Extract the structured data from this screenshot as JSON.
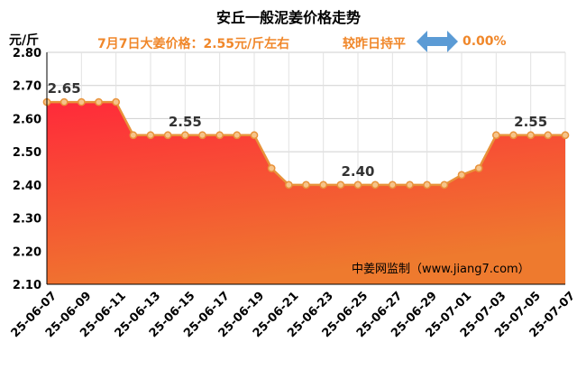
{
  "title": "安丘一般泥姜价格走势",
  "unit": "元/斤",
  "subtitle": "7月7日大姜价格：2.55元/斤左右",
  "compare_text": "较昨日持平",
  "change_pct": "0.00%",
  "watermark": "中姜网监制（www.jiang7.com）",
  "colors": {
    "line": "#e8923a",
    "fill_top": "#ff2a3a",
    "fill_bottom": "#ee7a2e",
    "subtitle": "#f0872a",
    "arrow": "#5b9bd5"
  },
  "chart_data": {
    "type": "area",
    "title": "安丘一般泥姜价格走势",
    "ylabel": "元/斤",
    "ylim": [
      2.1,
      2.8
    ],
    "yticks": [
      "2.10",
      "2.20",
      "2.30",
      "2.40",
      "2.50",
      "2.60",
      "2.70",
      "2.80"
    ],
    "grid": true,
    "x": [
      "25-06-07",
      "25-06-08",
      "25-06-09",
      "25-06-10",
      "25-06-11",
      "25-06-12",
      "25-06-13",
      "25-06-14",
      "25-06-15",
      "25-06-16",
      "25-06-17",
      "25-06-18",
      "25-06-19",
      "25-06-20",
      "25-06-21",
      "25-06-22",
      "25-06-23",
      "25-06-24",
      "25-06-25",
      "25-06-26",
      "25-06-27",
      "25-06-28",
      "25-06-29",
      "25-06-30",
      "25-07-01",
      "25-07-02",
      "25-07-03",
      "25-07-04",
      "25-07-05",
      "25-07-06",
      "25-07-07"
    ],
    "xtick_labels": [
      "25-06-07",
      "25-06-09",
      "25-06-11",
      "25-06-13",
      "25-06-15",
      "25-06-17",
      "25-06-19",
      "25-06-21",
      "25-06-23",
      "25-06-25",
      "25-06-27",
      "25-06-29",
      "25-07-01",
      "25-07-03",
      "25-07-05",
      "25-07-07"
    ],
    "values": [
      2.65,
      2.65,
      2.65,
      2.65,
      2.65,
      2.55,
      2.55,
      2.55,
      2.55,
      2.55,
      2.55,
      2.55,
      2.55,
      2.45,
      2.4,
      2.4,
      2.4,
      2.4,
      2.4,
      2.4,
      2.4,
      2.4,
      2.4,
      2.4,
      2.43,
      2.45,
      2.55,
      2.55,
      2.55,
      2.55,
      2.55
    ],
    "annotations": [
      {
        "index": 1,
        "text": "2.65"
      },
      {
        "index": 8,
        "text": "2.55"
      },
      {
        "index": 18,
        "text": "2.40"
      },
      {
        "index": 28,
        "text": "2.55"
      }
    ]
  }
}
